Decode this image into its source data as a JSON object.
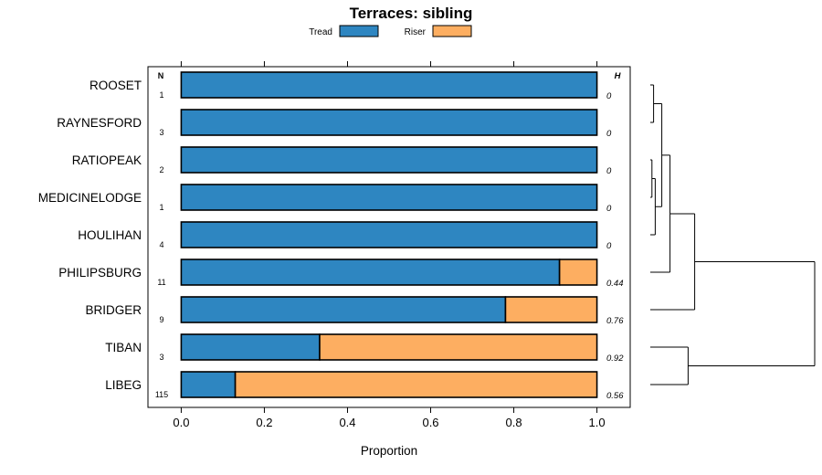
{
  "chart_data": {
    "type": "bar",
    "orientation": "horizontal",
    "stacked": true,
    "title": "Terraces: sibling",
    "xlabel": "Proportion",
    "xlim": [
      -0.08,
      1.08
    ],
    "xticks": [
      0.0,
      0.2,
      0.4,
      0.6,
      0.8,
      1.0
    ],
    "xtick_labels": [
      "0.0",
      "0.2",
      "0.4",
      "0.6",
      "0.8",
      "1.0"
    ],
    "n_column_header": "N",
    "h_column_header": "H",
    "categories": [
      "ROOSET",
      "RAYNESFORD",
      "RATIOPEAK",
      "MEDICINELODGE",
      "HOULIHAN",
      "PHILIPSBURG",
      "BRIDGER",
      "TIBAN",
      "LIBEG"
    ],
    "n": [
      "1",
      "3",
      "2",
      "1",
      "4",
      "11",
      "9",
      "3",
      "115"
    ],
    "h": [
      "0",
      "0",
      "0",
      "0",
      "0",
      "0.44",
      "0.76",
      "0.92",
      "0.56"
    ],
    "series": [
      {
        "name": "Tread",
        "color": "#2e86c1",
        "values": [
          1.0,
          1.0,
          1.0,
          1.0,
          1.0,
          0.91,
          0.78,
          0.333,
          0.13
        ]
      },
      {
        "name": "Riser",
        "color": "#fdae61",
        "values": [
          0.0,
          0.0,
          0.0,
          0.0,
          0.0,
          0.09,
          0.22,
          0.667,
          0.87
        ]
      }
    ],
    "legend_position": "top"
  },
  "dendrogram": {
    "max_height": 1.0,
    "nodes": [
      {
        "id": "n1",
        "children": [
          "ROOSET",
          "RAYNESFORD"
        ],
        "height": 0.02
      },
      {
        "id": "n2",
        "children": [
          "RATIOPEAK",
          "MEDICINELODGE"
        ],
        "height": 0.01
      },
      {
        "id": "n3",
        "children": [
          "n2",
          "HOULIHAN"
        ],
        "height": 0.03
      },
      {
        "id": "n4",
        "children": [
          "n1",
          "n3"
        ],
        "height": 0.07
      },
      {
        "id": "n5",
        "children": [
          "n4",
          "PHILIPSBURG"
        ],
        "height": 0.12
      },
      {
        "id": "n6",
        "children": [
          "n5",
          "BRIDGER"
        ],
        "height": 0.27
      },
      {
        "id": "n7",
        "children": [
          "TIBAN",
          "LIBEG"
        ],
        "height": 0.23
      },
      {
        "id": "n8",
        "children": [
          "n6",
          "n7"
        ],
        "height": 1.0
      }
    ]
  }
}
